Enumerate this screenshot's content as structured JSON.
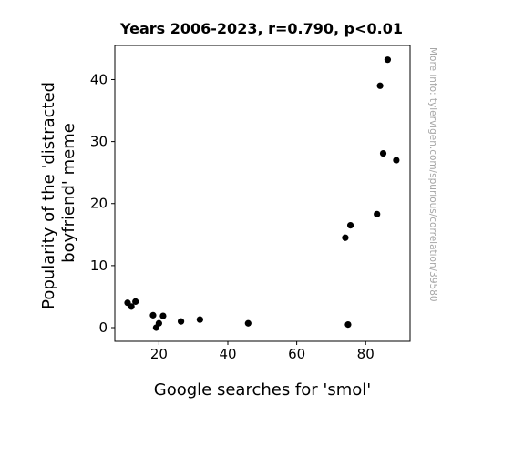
{
  "chart_data": {
    "type": "scatter",
    "title": "Years 2006-2023, r=0.790, p<0.01",
    "xlabel": "Google searches for 'smol'",
    "ylabel_lines": [
      "Popularity of the 'distracted",
      "boyfriend' meme"
    ],
    "side_note": "More info: tylervigen.com/spurious/correlation/39580",
    "xlim": [
      7.2,
      92.9
    ],
    "ylim": [
      -2.2,
      45.5
    ],
    "xticks": [
      20,
      40,
      60,
      80
    ],
    "yticks": [
      0,
      10,
      20,
      30,
      40
    ],
    "grid": false,
    "point_color": "#000000",
    "points": [
      {
        "x": 10.9,
        "y": 4.0
      },
      {
        "x": 12.0,
        "y": 3.4
      },
      {
        "x": 13.2,
        "y": 4.2
      },
      {
        "x": 18.3,
        "y": 2.0
      },
      {
        "x": 19.2,
        "y": 0.0
      },
      {
        "x": 20.0,
        "y": 0.7
      },
      {
        "x": 21.2,
        "y": 1.9
      },
      {
        "x": 26.4,
        "y": 1.0
      },
      {
        "x": 31.9,
        "y": 1.3
      },
      {
        "x": 45.9,
        "y": 0.7
      },
      {
        "x": 74.1,
        "y": 14.5
      },
      {
        "x": 74.9,
        "y": 0.5
      },
      {
        "x": 75.6,
        "y": 16.5
      },
      {
        "x": 83.3,
        "y": 18.3
      },
      {
        "x": 84.2,
        "y": 39.0
      },
      {
        "x": 85.1,
        "y": 28.1
      },
      {
        "x": 86.4,
        "y": 43.2
      },
      {
        "x": 88.9,
        "y": 27.0
      }
    ]
  }
}
